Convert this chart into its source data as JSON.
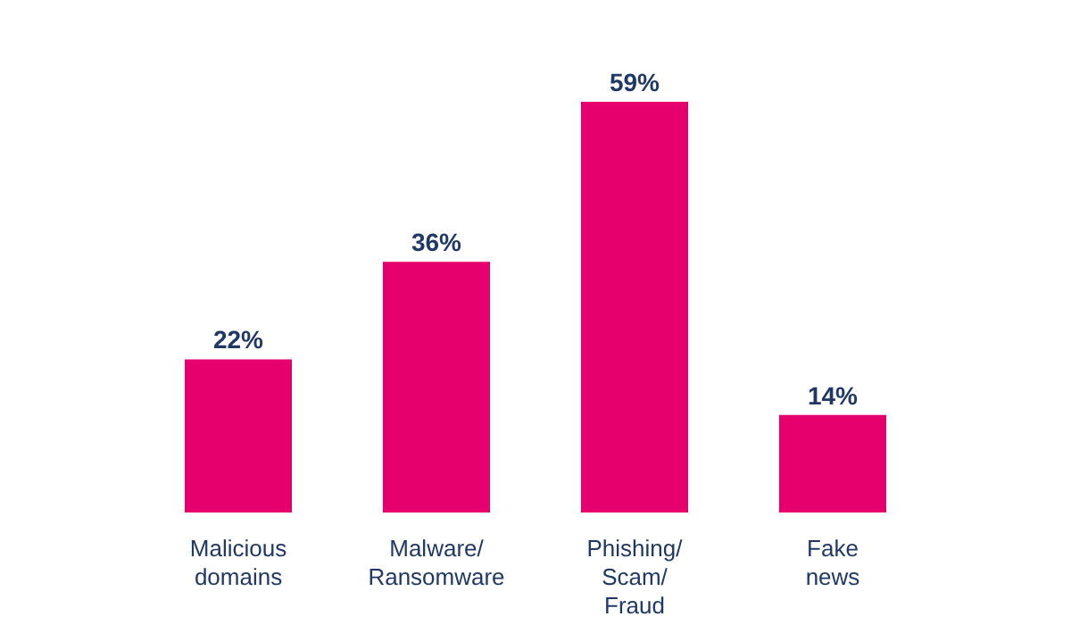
{
  "chart_data": {
    "type": "bar",
    "categories": [
      "Malicious domains",
      "Malware/Ransomware",
      "Phishing/Scam/Fraud",
      "Fake news"
    ],
    "values": [
      22,
      36,
      59,
      14
    ],
    "color": "#e5006e",
    "value_labels": [
      "22%",
      "36%",
      "59%",
      "14%"
    ],
    "grid": false,
    "legend": false
  }
}
